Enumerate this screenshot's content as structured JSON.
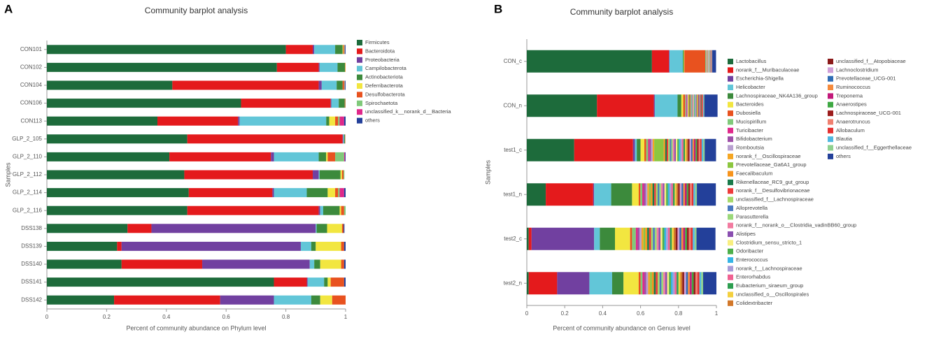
{
  "chart_data": [
    {
      "type": "stacked_barh",
      "panel_label": "A",
      "title": "Community barplot analysis",
      "x_label": "Percent of community abundance on Phylum level",
      "y_label": "Samples",
      "categories": [
        "CON101",
        "CON102",
        "CON104",
        "CON106",
        "CON113",
        "GLP_2_105",
        "GLP_2_110",
        "GLP_2_112",
        "GLP_2_114",
        "GLP_2_116",
        "DSS138",
        "DSS139",
        "DSS140",
        "DSS141",
        "DSS142"
      ],
      "xlim": [
        0,
        1
      ],
      "xticks": [
        0,
        0.2,
        0.4,
        0.6,
        0.8,
        1
      ],
      "series": [
        {
          "name": "Firmicutes",
          "color": "#1d6b3b",
          "values": [
            0.8,
            0.77,
            0.42,
            0.65,
            0.37,
            0.47,
            0.41,
            0.46,
            0.475,
            0.47,
            0.27,
            0.235,
            0.25,
            0.76,
            0.225
          ]
        },
        {
          "name": "Bacteroidota",
          "color": "#e41a1c",
          "values": [
            0.09,
            0.14,
            0.49,
            0.3,
            0.27,
            0.52,
            0.34,
            0.43,
            0.28,
            0.44,
            0.08,
            0.015,
            0.27,
            0.11,
            0.355
          ]
        },
        {
          "name": "Proteobacteria",
          "color": "#7140a0",
          "values": [
            0.005,
            0.003,
            0.01,
            0.002,
            0.005,
            0.002,
            0.01,
            0.02,
            0.005,
            0.005,
            0.55,
            0.6,
            0.36,
            0.003,
            0.18
          ]
        },
        {
          "name": "Campilobacterota",
          "color": "#62c6d8",
          "values": [
            0.07,
            0.06,
            0.05,
            0.025,
            0.29,
            0.003,
            0.15,
            0.003,
            0.11,
            0.01,
            0.003,
            0.035,
            0.015,
            0.055,
            0.125
          ]
        },
        {
          "name": "Actinobacteriota",
          "color": "#3c8a3c",
          "values": [
            0.025,
            0.025,
            0.02,
            0.02,
            0.01,
            0.003,
            0.025,
            0.07,
            0.07,
            0.055,
            0.035,
            0.015,
            0.02,
            0.012,
            0.03
          ]
        },
        {
          "name": "Deferribacterota",
          "color": "#f2e640",
          "values": [
            0.002,
            0.001,
            0,
            0,
            0.02,
            0,
            0.005,
            0.005,
            0.025,
            0.005,
            0.05,
            0.085,
            0.07,
            0.01,
            0.04
          ]
        },
        {
          "name": "Desulfobacterota",
          "color": "#e8521f",
          "values": [
            0.003,
            0.001,
            0.005,
            0.002,
            0.01,
            0.001,
            0.025,
            0.005,
            0.01,
            0.01,
            0.005,
            0.01,
            0.01,
            0.045,
            0.045
          ]
        },
        {
          "name": "Spirochaetota",
          "color": "#80c97a",
          "values": [
            0.002,
            0,
            0.002,
            0.001,
            0.005,
            0,
            0.03,
            0.003,
            0.005,
            0.005,
            0,
            0,
            0,
            0,
            0
          ]
        },
        {
          "name": "unclassified_k__norank_d__Bacteria",
          "color": "#e0288a",
          "values": [
            0.001,
            0,
            0.001,
            0,
            0.015,
            0,
            0.003,
            0,
            0.015,
            0,
            0,
            0,
            0,
            0,
            0
          ]
        },
        {
          "name": "others",
          "color": "#23409a",
          "values": [
            0.002,
            0,
            0.002,
            0,
            0.005,
            0,
            0.002,
            0,
            0.005,
            0,
            0.003,
            0.005,
            0.005,
            0.005,
            0
          ]
        }
      ]
    },
    {
      "type": "stacked_barh",
      "panel_label": "B",
      "title": "Community barplot analysis",
      "x_label": "Percent of community abundance on Genus level",
      "y_label": "Samples",
      "categories": [
        "CON_c",
        "CON_n",
        "test1_c",
        "test1_n",
        "test2_c",
        "test2_n"
      ],
      "xlim": [
        0,
        1
      ],
      "xticks": [
        0,
        0.2,
        0.4,
        0.6,
        0.8,
        1
      ],
      "series": [
        {
          "name": "Lactobacillus",
          "color": "#1d6b3b",
          "values": [
            0.66,
            0.37,
            0.25,
            0.1,
            0.01,
            0.01
          ]
        },
        {
          "name": "norank_f__Muribaculaceae",
          "color": "#e41a1c",
          "values": [
            0.09,
            0.3,
            0.31,
            0.25,
            0.015,
            0.15
          ]
        },
        {
          "name": "Escherichia-Shigella",
          "color": "#7140a0",
          "values": [
            0.003,
            0.005,
            0.01,
            0.005,
            0.33,
            0.17
          ]
        },
        {
          "name": "Helicobacter",
          "color": "#62c6d8",
          "values": [
            0.07,
            0.12,
            0.01,
            0.09,
            0.03,
            0.12
          ]
        },
        {
          "name": "Lachnospiraceae_NK4A136_group",
          "color": "#3c8a3c",
          "values": [
            0.005,
            0.02,
            0.02,
            0.11,
            0.08,
            0.06
          ]
        },
        {
          "name": "Bacteroides",
          "color": "#f2e640",
          "values": [
            0.003,
            0.01,
            0.02,
            0.035,
            0.08,
            0.08
          ]
        },
        {
          "name": "Dubosiella",
          "color": "#e8521f",
          "values": [
            0.11,
            0.01,
            0.01,
            0.009,
            0.01,
            0.01
          ]
        },
        {
          "name": "Mucispirillum",
          "color": "#80c97a",
          "values": [
            0.005,
            0.005,
            0.01,
            0.01,
            0.02,
            0.01
          ]
        },
        {
          "name": "Turicibacter",
          "color": "#e0288a",
          "values": [
            0.001,
            0.003,
            0.008,
            0.009,
            0.01,
            0.01
          ]
        },
        {
          "name": "Bifidobacterium",
          "color": "#9e4fa8",
          "values": [
            0.001,
            0.003,
            0.008,
            0.009,
            0.01,
            0.01
          ]
        },
        {
          "name": "Romboutsia",
          "color": "#b8a0d0",
          "values": [
            0.001,
            0.003,
            0.008,
            0.009,
            0.01,
            0.01
          ]
        },
        {
          "name": "norank_f__Oscillospiraceae",
          "color": "#f5a623",
          "values": [
            0.001,
            0.003,
            0.008,
            0.009,
            0.01,
            0.01
          ]
        },
        {
          "name": "Prevotellaceae_Ga6A1_group",
          "color": "#8cc63f",
          "values": [
            0.001,
            0.003,
            0.05,
            0.009,
            0.01,
            0.01
          ]
        },
        {
          "name": "Faecalibaculum",
          "color": "#f7941d",
          "values": [
            0.001,
            0.003,
            0.008,
            0.009,
            0.01,
            0.01
          ]
        },
        {
          "name": "Rikenellaceae_RC9_gut_group",
          "color": "#1a7a4a",
          "values": [
            0.001,
            0.003,
            0.008,
            0.009,
            0.01,
            0.01
          ]
        },
        {
          "name": "norank_f__Desulfovibrionaceae",
          "color": "#ee3b3b",
          "values": [
            0.001,
            0.003,
            0.008,
            0.009,
            0.01,
            0.01
          ]
        },
        {
          "name": "unclassified_f__Lachnospiraceae",
          "color": "#a6d96a",
          "values": [
            0.001,
            0.003,
            0.008,
            0.009,
            0.01,
            0.01
          ]
        },
        {
          "name": "Alloprevotella",
          "color": "#4a7ac0",
          "values": [
            0.001,
            0.003,
            0.008,
            0.009,
            0.01,
            0.01
          ]
        },
        {
          "name": "Parasutterella",
          "color": "#9bd87a",
          "values": [
            0.001,
            0.003,
            0.008,
            0.009,
            0.01,
            0.01
          ]
        },
        {
          "name": "norank_f__norank_o__Clostridia_vadinBB60_group",
          "color": "#f27ba0",
          "values": [
            0.001,
            0.003,
            0.008,
            0.009,
            0.01,
            0.01
          ]
        },
        {
          "name": "Alistipes",
          "color": "#8a4fb0",
          "values": [
            0.001,
            0.003,
            0.008,
            0.009,
            0.01,
            0.01
          ]
        },
        {
          "name": "Clostridium_sensu_stricto_1",
          "color": "#f8ee80",
          "values": [
            0.001,
            0.003,
            0.008,
            0.009,
            0.01,
            0.01
          ]
        },
        {
          "name": "Odoribacter",
          "color": "#4daf4a",
          "values": [
            0.001,
            0.003,
            0.008,
            0.009,
            0.01,
            0.01
          ]
        },
        {
          "name": "Enterococcus",
          "color": "#36b4e6",
          "values": [
            0.001,
            0.003,
            0.008,
            0.009,
            0.01,
            0.01
          ]
        },
        {
          "name": "norank_f__Lachnospiraceae",
          "color": "#a89cd8",
          "values": [
            0.001,
            0.003,
            0.008,
            0.009,
            0.01,
            0.01
          ]
        },
        {
          "name": "Enterorhabdus",
          "color": "#f06292",
          "values": [
            0.001,
            0.003,
            0.008,
            0.009,
            0.01,
            0.01
          ]
        },
        {
          "name": "Eubacterium_siraeum_group",
          "color": "#2e9e50",
          "values": [
            0.001,
            0.003,
            0.008,
            0.009,
            0.01,
            0.01
          ]
        },
        {
          "name": "unclassified_o__Oscillospirales",
          "color": "#f4d03f",
          "values": [
            0.001,
            0.003,
            0.008,
            0.009,
            0.01,
            0.01
          ]
        },
        {
          "name": "Colidextribacter",
          "color": "#d2782a",
          "values": [
            0.001,
            0.003,
            0.008,
            0.009,
            0.01,
            0.01
          ]
        },
        {
          "name": "unclassified_f__Atopobiaceae",
          "color": "#8b1a1a",
          "values": [
            0.001,
            0.003,
            0.008,
            0.009,
            0.01,
            0.01
          ]
        },
        {
          "name": "Lachnoclostridium",
          "color": "#d0a0d8",
          "values": [
            0.001,
            0.003,
            0.008,
            0.009,
            0.01,
            0.01
          ]
        },
        {
          "name": "Prevotellaceae_UCG-001",
          "color": "#2f6db5",
          "values": [
            0.001,
            0.003,
            0.008,
            0.009,
            0.01,
            0.01
          ]
        },
        {
          "name": "Ruminococcus",
          "color": "#f58a3c",
          "values": [
            0.001,
            0.003,
            0.008,
            0.009,
            0.01,
            0.01
          ]
        },
        {
          "name": "Treponema",
          "color": "#c2187a",
          "values": [
            0.001,
            0.003,
            0.008,
            0.009,
            0.01,
            0.01
          ]
        },
        {
          "name": "Anaerostipes",
          "color": "#3ea843",
          "values": [
            0.001,
            0.003,
            0.008,
            0.009,
            0.01,
            0.01
          ]
        },
        {
          "name": "Lachnospiraceae_UCG-001",
          "color": "#9c1c1c",
          "values": [
            0.001,
            0.003,
            0.008,
            0.009,
            0.01,
            0.01
          ]
        },
        {
          "name": "Anaerotruncus",
          "color": "#f08070",
          "values": [
            0.001,
            0.003,
            0.008,
            0.009,
            0.01,
            0.01
          ]
        },
        {
          "name": "Allobaculum",
          "color": "#e53030",
          "values": [
            0.001,
            0.003,
            0.008,
            0.009,
            0.01,
            0.01
          ]
        },
        {
          "name": "Blautia",
          "color": "#50b8e0",
          "values": [
            0.001,
            0.003,
            0.008,
            0.009,
            0.01,
            0.01
          ]
        },
        {
          "name": "unclassified_f__Eggerthellaceae",
          "color": "#8fd18f",
          "values": [
            0.001,
            0.003,
            0.008,
            0.009,
            0.01,
            0.01
          ]
        },
        {
          "name": "others",
          "color": "#23409a",
          "values": [
            0.02,
            0.07,
            0.06,
            0.1,
            0.1,
            0.07
          ]
        }
      ]
    }
  ]
}
